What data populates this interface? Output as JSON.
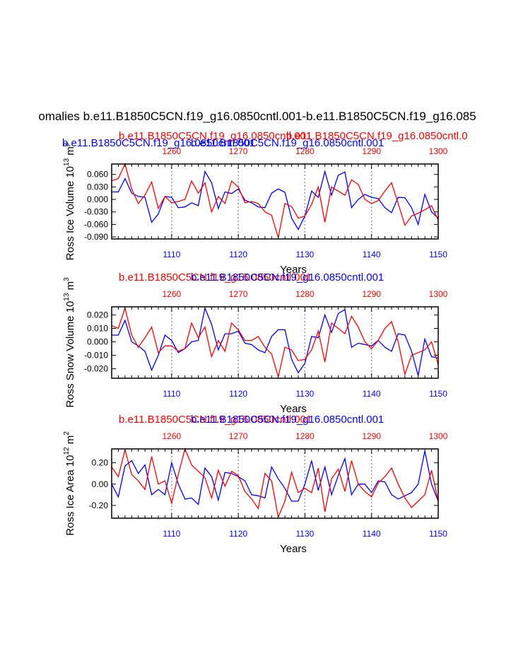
{
  "page_title": "omalies b.e11.B1850C5CN.f19_g16.0850cntl.001-b.e11.B1850C5CN.f19_g16.085",
  "colors": {
    "series_a": "#0000ff",
    "series_b": "#ff0000",
    "axis": "#000000",
    "grid": "#999999"
  },
  "chart_data": [
    {
      "type": "line",
      "panel": "top",
      "title": "",
      "overlap_titles": [
        {
          "text": "b.e11.B1850C5CN.f19_g16.0850cntl.001",
          "color": "blue"
        },
        {
          "text": "b.e11.B1850C5CN.f19_g16.0850cntl.001",
          "color": "red"
        },
        {
          "text": "b.e11.B1850C5CN.f19_g16.0850cntl.001",
          "color": "blue"
        },
        {
          "text": "b.e11.B1850C5CN.f19_g16.0850cntl.0",
          "color": "red"
        }
      ],
      "xlabel": "Years",
      "ylabel": "Ross Ice Volume 10",
      "ylabel_exp": "13",
      "ylabel_unit": " m",
      "ylabel_unit_exp": "3",
      "x_bottom_ticks": [
        "1110",
        "1120",
        "1130",
        "1140",
        "1150"
      ],
      "x_top_ticks": [
        "1260",
        "1270",
        "1280",
        "1290",
        "1300"
      ],
      "ylim": [
        -0.095,
        0.085
      ],
      "y_ticks": [
        0.06,
        0.03,
        0.0,
        -0.03,
        -0.06,
        -0.09
      ],
      "y_tick_labels": [
        "0.060",
        "0.030",
        "0.000",
        "-0.030",
        "-0.060",
        "-0.090"
      ],
      "x": [
        1101,
        1102,
        1103,
        1104,
        1105,
        1106,
        1107,
        1108,
        1109,
        1110,
        1111,
        1112,
        1113,
        1114,
        1115,
        1116,
        1117,
        1118,
        1119,
        1120,
        1121,
        1122,
        1123,
        1124,
        1125,
        1126,
        1127,
        1128,
        1129,
        1130,
        1131,
        1132,
        1133,
        1134,
        1135,
        1136,
        1137,
        1138,
        1139,
        1140,
        1141,
        1142,
        1143,
        1144,
        1145,
        1146,
        1147,
        1148,
        1149,
        1150
      ],
      "series": [
        {
          "name": "blue",
          "color": "blue",
          "values": [
            0.018,
            0.018,
            0.05,
            0.015,
            0.007,
            0.005,
            -0.055,
            -0.035,
            0.007,
            0.005,
            -0.02,
            -0.018,
            -0.008,
            -0.015,
            0.067,
            0.04,
            -0.022,
            0.018,
            0.014,
            0.025,
            -0.002,
            -0.008,
            -0.018,
            -0.02,
            0.015,
            0.025,
            0.017,
            -0.045,
            -0.072,
            -0.04,
            0.02,
            0.005,
            0.067,
            0.01,
            0.058,
            0.066,
            -0.02,
            0.0,
            0.012,
            0.005,
            0.002,
            -0.02,
            -0.032,
            0.005,
            0.004,
            -0.02,
            -0.06,
            0.012,
            -0.03,
            -0.045
          ]
        },
        {
          "name": "red",
          "color": "red",
          "values": [
            0.045,
            0.05,
            0.085,
            0.025,
            -0.01,
            0.01,
            0.042,
            -0.022,
            0.007,
            -0.008,
            -0.005,
            0.0,
            0.044,
            0.015,
            0.04,
            -0.03,
            0.007,
            -0.01,
            0.044,
            0.03,
            -0.008,
            -0.005,
            -0.01,
            -0.03,
            -0.038,
            -0.092,
            -0.01,
            -0.017,
            -0.045,
            -0.04,
            -0.012,
            0.03,
            -0.055,
            0.03,
            0.02,
            0.01,
            0.047,
            0.036,
            0.0,
            -0.01,
            -0.003,
            0.02,
            0.04,
            -0.01,
            -0.062,
            -0.04,
            -0.033,
            -0.025,
            -0.015,
            -0.05
          ]
        }
      ]
    },
    {
      "type": "line",
      "panel": "middle",
      "title": "",
      "overlap_titles": [
        {
          "text": "b.e11.B1850C5CN.f19_g16.0850cntl.001",
          "color": "red"
        },
        {
          "text": "b.e11.B1850C5CN.f19_g16.0850cntl.001",
          "color": "blue"
        }
      ],
      "xlabel": "Years",
      "ylabel": "Ross Snow Volume 10",
      "ylabel_exp": "13",
      "ylabel_unit": " m",
      "ylabel_unit_exp": "3",
      "x_bottom_ticks": [
        "1110",
        "1120",
        "1130",
        "1140",
        "1150"
      ],
      "x_top_ticks": [
        "1260",
        "1270",
        "1280",
        "1290",
        "1300"
      ],
      "ylim": [
        -0.027,
        0.026
      ],
      "y_ticks": [
        0.02,
        0.01,
        0.0,
        -0.01,
        -0.02
      ],
      "y_tick_labels": [
        "0.020",
        "0.010",
        "0.000",
        "-0.010",
        "-0.020"
      ],
      "x": [
        1101,
        1102,
        1103,
        1104,
        1105,
        1106,
        1107,
        1108,
        1109,
        1110,
        1111,
        1112,
        1113,
        1114,
        1115,
        1116,
        1117,
        1118,
        1119,
        1120,
        1121,
        1122,
        1123,
        1124,
        1125,
        1126,
        1127,
        1128,
        1129,
        1130,
        1131,
        1132,
        1133,
        1134,
        1135,
        1136,
        1137,
        1138,
        1139,
        1140,
        1141,
        1142,
        1143,
        1144,
        1145,
        1146,
        1147,
        1148,
        1149,
        1150
      ],
      "series": [
        {
          "name": "blue",
          "color": "blue",
          "values": [
            0.005,
            0.005,
            0.016,
            0.0,
            -0.003,
            -0.007,
            -0.021,
            -0.01,
            0.005,
            0.001,
            -0.008,
            -0.005,
            0.0,
            0.001,
            0.025,
            0.013,
            -0.006,
            0.006,
            0.006,
            0.008,
            -0.001,
            -0.002,
            -0.006,
            -0.008,
            0.004,
            0.009,
            0.009,
            -0.013,
            -0.023,
            -0.016,
            0.004,
            0.003,
            0.02,
            0.007,
            0.021,
            0.024,
            -0.004,
            -0.001,
            -0.002,
            -0.003,
            0.001,
            -0.004,
            -0.007,
            0.006,
            0.005,
            -0.007,
            -0.025,
            0.002,
            -0.011,
            -0.012
          ]
        },
        {
          "name": "red",
          "color": "red",
          "values": [
            0.012,
            0.01,
            0.025,
            0.005,
            -0.004,
            0.003,
            0.011,
            -0.008,
            -0.003,
            -0.003,
            -0.007,
            -0.005,
            0.014,
            0.003,
            0.011,
            -0.011,
            0.001,
            -0.007,
            0.014,
            0.009,
            0.001,
            0.001,
            0.004,
            -0.004,
            -0.009,
            -0.026,
            -0.004,
            -0.006,
            -0.014,
            -0.013,
            -0.006,
            0.008,
            -0.015,
            0.014,
            0.01,
            0.006,
            0.019,
            0.011,
            0.0,
            -0.005,
            0.001,
            0.01,
            0.015,
            0.0,
            -0.024,
            -0.01,
            -0.008,
            -0.006,
            0.0,
            -0.017
          ]
        }
      ]
    },
    {
      "type": "line",
      "panel": "bottom",
      "title": "",
      "overlap_titles": [
        {
          "text": "b.e11.B1850C5CN.f19_g16.0850cntl.001",
          "color": "red"
        },
        {
          "text": "b.e11.B1850C5CN.f19_g16.0850cntl.001",
          "color": "blue"
        }
      ],
      "xlabel": "Years",
      "ylabel": "Ross Ice Area 10",
      "ylabel_exp": "12",
      "ylabel_unit": " m",
      "ylabel_unit_exp": "2",
      "x_bottom_ticks": [
        "1110",
        "1120",
        "1130",
        "1140",
        "1150"
      ],
      "x_top_ticks": [
        "1260",
        "1270",
        "1280",
        "1290",
        "1300"
      ],
      "ylim": [
        -0.32,
        0.33
      ],
      "y_ticks": [
        0.2,
        0.0,
        -0.2
      ],
      "y_tick_labels": [
        "0.20",
        "0.00",
        "-0.20"
      ],
      "x": [
        1101,
        1102,
        1103,
        1104,
        1105,
        1106,
        1107,
        1108,
        1109,
        1110,
        1111,
        1112,
        1113,
        1114,
        1115,
        1116,
        1117,
        1118,
        1119,
        1120,
        1121,
        1122,
        1123,
        1124,
        1125,
        1126,
        1127,
        1128,
        1129,
        1130,
        1131,
        1132,
        1133,
        1134,
        1135,
        1136,
        1137,
        1138,
        1139,
        1140,
        1141,
        1142,
        1143,
        1144,
        1145,
        1146,
        1147,
        1148,
        1149,
        1150
      ],
      "series": [
        {
          "name": "blue",
          "color": "blue",
          "values": [
            0.0,
            -0.12,
            0.17,
            0.22,
            0.1,
            0.18,
            -0.1,
            -0.05,
            -0.1,
            0.2,
            0.0,
            -0.14,
            -0.13,
            -0.19,
            0.15,
            0.07,
            -0.15,
            0.11,
            0.1,
            0.07,
            0.03,
            -0.1,
            -0.11,
            -0.13,
            0.16,
            0.05,
            -0.04,
            -0.16,
            -0.16,
            0.0,
            0.22,
            -0.06,
            0.16,
            -0.1,
            0.08,
            0.24,
            -0.1,
            0.0,
            0.0,
            -0.08,
            0.03,
            0.02,
            -0.1,
            -0.14,
            -0.11,
            -0.08,
            0.0,
            0.31,
            0.0,
            -0.16
          ]
        },
        {
          "name": "red",
          "color": "red",
          "values": [
            0.16,
            0.07,
            0.32,
            0.09,
            0.03,
            -0.05,
            0.26,
            0.0,
            0.03,
            -0.18,
            0.09,
            0.33,
            0.18,
            0.12,
            0.06,
            -0.13,
            0.13,
            -0.02,
            0.12,
            0.08,
            -0.07,
            -0.14,
            -0.23,
            0.1,
            0.03,
            -0.31,
            -0.16,
            0.11,
            -0.08,
            -0.04,
            -0.08,
            0.15,
            -0.26,
            0.05,
            0.14,
            -0.07,
            0.22,
            0.0,
            -0.07,
            -0.12,
            0.01,
            0.07,
            0.15,
            0.0,
            -0.13,
            -0.22,
            -0.16,
            -0.1,
            0.13,
            -0.16
          ]
        }
      ]
    }
  ]
}
